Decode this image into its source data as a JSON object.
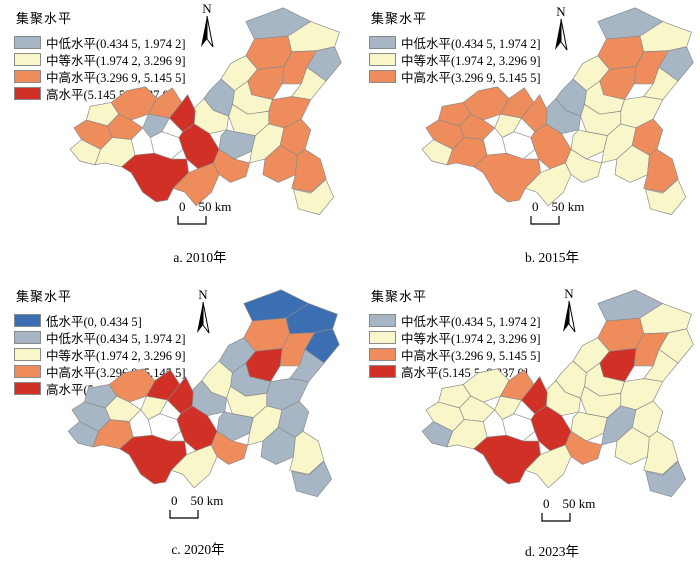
{
  "figure_type": "choropleth-small-multiples",
  "north_label": "N",
  "scale_bar": {
    "zero": "0",
    "distance": "50 km"
  },
  "colors": {
    "low": "#3b6fb1",
    "mid_low": "#a6b6c4",
    "mid": "#f9f6c9",
    "mid_high": "#ee8c5b",
    "high": "#d03026",
    "none": "#ffffff",
    "border": "#8a8a8a"
  },
  "legend_labels": {
    "low": "低水平(0, 0.434 5]",
    "mid_low": "中低水平(0.434 5, 1.974 2]",
    "mid": "中等水平(1.974 2, 3.296 9]",
    "mid_high": "中高水平(3.296 9, 5.145 5]",
    "high": "高水平(5.145 5, 8.837 0]"
  },
  "panels": [
    {
      "id": "a",
      "caption": "a. 2010年",
      "legend_title": "集聚水平",
      "legend_keys": [
        "mid_low",
        "mid",
        "mid_high",
        "high"
      ],
      "levels": {
        "d01": "mid_low",
        "d02": "mid",
        "d03": "mid_low",
        "d04": "mid_high",
        "d05": "mid_high",
        "d06": "mid",
        "d07": "mid_high",
        "d08": "mid",
        "d09": "mid",
        "d10": "mid_high",
        "d11": "mid_low",
        "d12": "mid",
        "d13": "mid",
        "d14": "mid_low",
        "d15": "mid",
        "d16": "mid_high",
        "d17": "mid_high",
        "d18": "mid_high",
        "d19": "mid",
        "d21": "mid",
        "d22": "mid_high",
        "d23": "mid_high",
        "d24": "high",
        "d25": "mid_high",
        "d26": "mid_low",
        "d27": "mid_high",
        "d28": "mid",
        "d29": "mid",
        "d30": "none",
        "d31": "high",
        "d32": "high",
        "d33": "mid_high",
        "d34": "mid_high"
      }
    },
    {
      "id": "b",
      "caption": "b. 2015年",
      "legend_title": "集聚水平",
      "legend_keys": [
        "mid_low",
        "mid",
        "mid_high"
      ],
      "levels": {
        "d01": "mid_low",
        "d02": "mid",
        "d03": "mid_low",
        "d04": "mid_high",
        "d05": "mid_high",
        "d06": "mid",
        "d07": "mid_high",
        "d08": "mid",
        "d09": "mid",
        "d10": "mid",
        "d11": "mid_low",
        "d12": "mid",
        "d13": "mid_low",
        "d14": "mid",
        "d15": "mid",
        "d16": "mid",
        "d17": "mid_high",
        "d18": "mid_high",
        "d19": "mid",
        "d21": "mid_high",
        "d22": "mid_high",
        "d23": "mid_high",
        "d24": "mid_high",
        "d25": "mid_high",
        "d26": "mid",
        "d27": "mid_high",
        "d28": "mid",
        "d29": "mid_high",
        "d30": "none",
        "d31": "mid_high",
        "d32": "mid_high",
        "d33": "mid",
        "d34": "mid"
      }
    },
    {
      "id": "c",
      "caption": "c. 2020年",
      "legend_title": "集聚水平",
      "legend_keys": [
        "low",
        "mid_low",
        "mid",
        "mid_high",
        "high"
      ],
      "levels": {
        "d01": "low",
        "d02": "low",
        "d03": "low",
        "d04": "mid_high",
        "d05": "mid_high",
        "d06": "mid_low",
        "d07": "high",
        "d08": "mid_low",
        "d09": "mid_low",
        "d10": "mid_low",
        "d11": "mid",
        "d12": "mid",
        "d13": "mid_low",
        "d14": "mid_low",
        "d15": "mid",
        "d16": "mid_low",
        "d17": "mid_low",
        "d18": "mid",
        "d19": "mid_low",
        "d21": "mid_low",
        "d22": "mid_high",
        "d23": "high",
        "d24": "high",
        "d25": "mid",
        "d26": "mid",
        "d27": "mid_low",
        "d28": "mid_low",
        "d29": "mid_high",
        "d30": "none",
        "d31": "high",
        "d32": "high",
        "d33": "mid",
        "d34": "mid_high"
      }
    },
    {
      "id": "d",
      "caption": "d. 2023年",
      "legend_title": "集聚水平",
      "legend_keys": [
        "mid_low",
        "mid",
        "mid_high",
        "high"
      ],
      "levels": {
        "d01": "mid_low",
        "d02": "mid",
        "d03": "mid",
        "d04": "mid_high",
        "d05": "mid_high",
        "d06": "mid",
        "d07": "high",
        "d08": "mid",
        "d09": "mid",
        "d10": "mid",
        "d11": "mid",
        "d12": "mid",
        "d13": "mid",
        "d14": "mid",
        "d15": "mid_low",
        "d16": "mid",
        "d17": "mid",
        "d18": "mid",
        "d19": "mid_low",
        "d21": "mid",
        "d22": "mid",
        "d23": "mid_high",
        "d24": "high",
        "d25": "mid",
        "d26": "mid",
        "d27": "mid",
        "d28": "mid_low",
        "d29": "mid",
        "d30": "none",
        "d31": "high",
        "d32": "high",
        "d33": "mid",
        "d34": "mid_high"
      }
    }
  ]
}
